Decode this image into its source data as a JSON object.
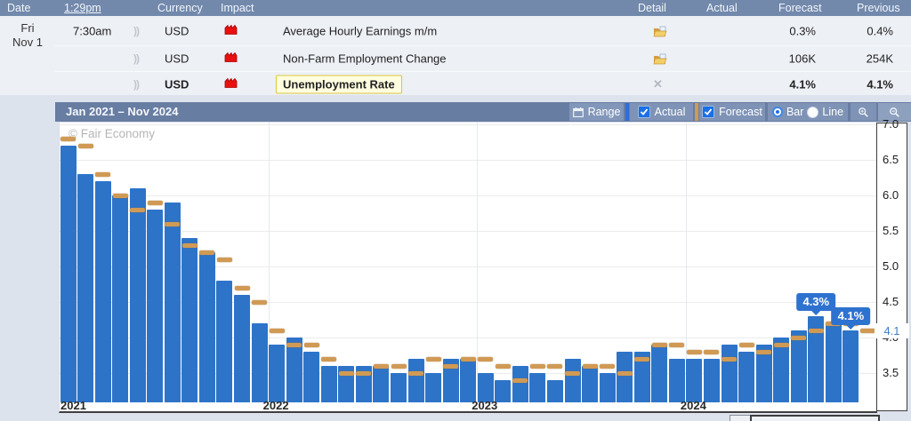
{
  "calendar": {
    "columns": {
      "date": "Date",
      "time": "1:29pm",
      "currency": "Currency",
      "impact": "Impact",
      "detail": "Detail",
      "actual": "Actual",
      "forecast": "Forecast",
      "previous": "Previous"
    },
    "day": "Fri",
    "day_date": "Nov 1",
    "speaker_glyph": "))",
    "close_glyph": "✕",
    "rows": [
      {
        "time": "7:30am",
        "currency": "USD",
        "impact": "high",
        "event": "Average Hourly Earnings m/m",
        "detail_icon": "open-folder",
        "actual": "",
        "forecast": "0.3%",
        "previous": "0.4%"
      },
      {
        "time": "",
        "currency": "USD",
        "impact": "high",
        "event": "Non-Farm Employment Change",
        "detail_icon": "open-folder",
        "actual": "",
        "forecast": "106K",
        "previous": "254K"
      },
      {
        "time": "",
        "currency": "USD",
        "impact": "high",
        "event": "Unemployment Rate",
        "detail_icon": "close",
        "actual": "",
        "forecast": "4.1%",
        "previous": "4.1%"
      }
    ]
  },
  "chart": {
    "title": "Jan 2021 – Nov 2024",
    "watermark": "© Fair Economy",
    "controls": {
      "range": "Range",
      "actual": "Actual",
      "forecast": "Forecast",
      "bar": "Bar",
      "line": "Line"
    },
    "current_value": "4.1",
    "tooltips": [
      {
        "index": 43,
        "label": "4.3%"
      },
      {
        "index": 45,
        "label": "4.1%"
      }
    ],
    "colors": {
      "actual": "#2d74c9",
      "forecast": "#d09a55",
      "tooltip": "#2e72cf",
      "header": "#7289ac"
    },
    "chart_data": {
      "type": "bar",
      "title": "Unemployment Rate — Jan 2021 – Nov 2024",
      "xlabel": "",
      "ylabel": "%",
      "ylim": [
        3.0,
        7.0
      ],
      "grid": true,
      "y_ticks": [
        7.0,
        6.5,
        6.0,
        5.5,
        5.0,
        4.5,
        4.0,
        3.5
      ],
      "x_year_marks": [
        {
          "label": "2021",
          "index": 0
        },
        {
          "label": "2022",
          "index": 12
        },
        {
          "label": "2023",
          "index": 24
        },
        {
          "label": "2024",
          "index": 36
        }
      ],
      "categories": [
        "Jan 2021",
        "Feb 2021",
        "Mar 2021",
        "Apr 2021",
        "May 2021",
        "Jun 2021",
        "Jul 2021",
        "Aug 2021",
        "Sep 2021",
        "Oct 2021",
        "Nov 2021",
        "Dec 2021",
        "Jan 2022",
        "Feb 2022",
        "Mar 2022",
        "Apr 2022",
        "May 2022",
        "Jun 2022",
        "Jul 2022",
        "Aug 2022",
        "Sep 2022",
        "Oct 2022",
        "Nov 2022",
        "Dec 2022",
        "Jan 2023",
        "Feb 2023",
        "Mar 2023",
        "Apr 2023",
        "May 2023",
        "Jun 2023",
        "Jul 2023",
        "Aug 2023",
        "Sep 2023",
        "Oct 2023",
        "Nov 2023",
        "Dec 2023",
        "Jan 2024",
        "Feb 2024",
        "Mar 2024",
        "Apr 2024",
        "May 2024",
        "Jun 2024",
        "Jul 2024",
        "Aug 2024",
        "Sep 2024",
        "Oct 2024",
        "Nov 2024"
      ],
      "series": [
        {
          "name": "Actual",
          "values": [
            6.7,
            6.3,
            6.2,
            6.0,
            6.1,
            5.8,
            5.9,
            5.4,
            5.2,
            4.8,
            4.6,
            4.2,
            3.9,
            4.0,
            3.8,
            3.6,
            3.6,
            3.6,
            3.6,
            3.5,
            3.7,
            3.5,
            3.7,
            3.7,
            3.5,
            3.4,
            3.6,
            3.5,
            3.4,
            3.7,
            3.6,
            3.5,
            3.8,
            3.8,
            3.9,
            3.7,
            3.7,
            3.7,
            3.9,
            3.8,
            3.9,
            4.0,
            4.1,
            4.3,
            4.2,
            4.1,
            null
          ]
        },
        {
          "name": "Forecast",
          "values": [
            6.8,
            6.7,
            6.3,
            6.0,
            5.8,
            5.9,
            5.6,
            5.3,
            5.2,
            5.1,
            4.7,
            4.5,
            4.1,
            3.9,
            3.9,
            3.7,
            3.5,
            3.5,
            3.6,
            3.6,
            3.5,
            3.7,
            3.6,
            3.7,
            3.7,
            3.6,
            3.4,
            3.6,
            3.6,
            3.5,
            3.6,
            3.6,
            3.5,
            3.7,
            3.9,
            3.9,
            3.8,
            3.8,
            3.7,
            3.9,
            3.8,
            3.9,
            4.0,
            4.1,
            4.2,
            4.2,
            4.1
          ]
        }
      ]
    }
  }
}
